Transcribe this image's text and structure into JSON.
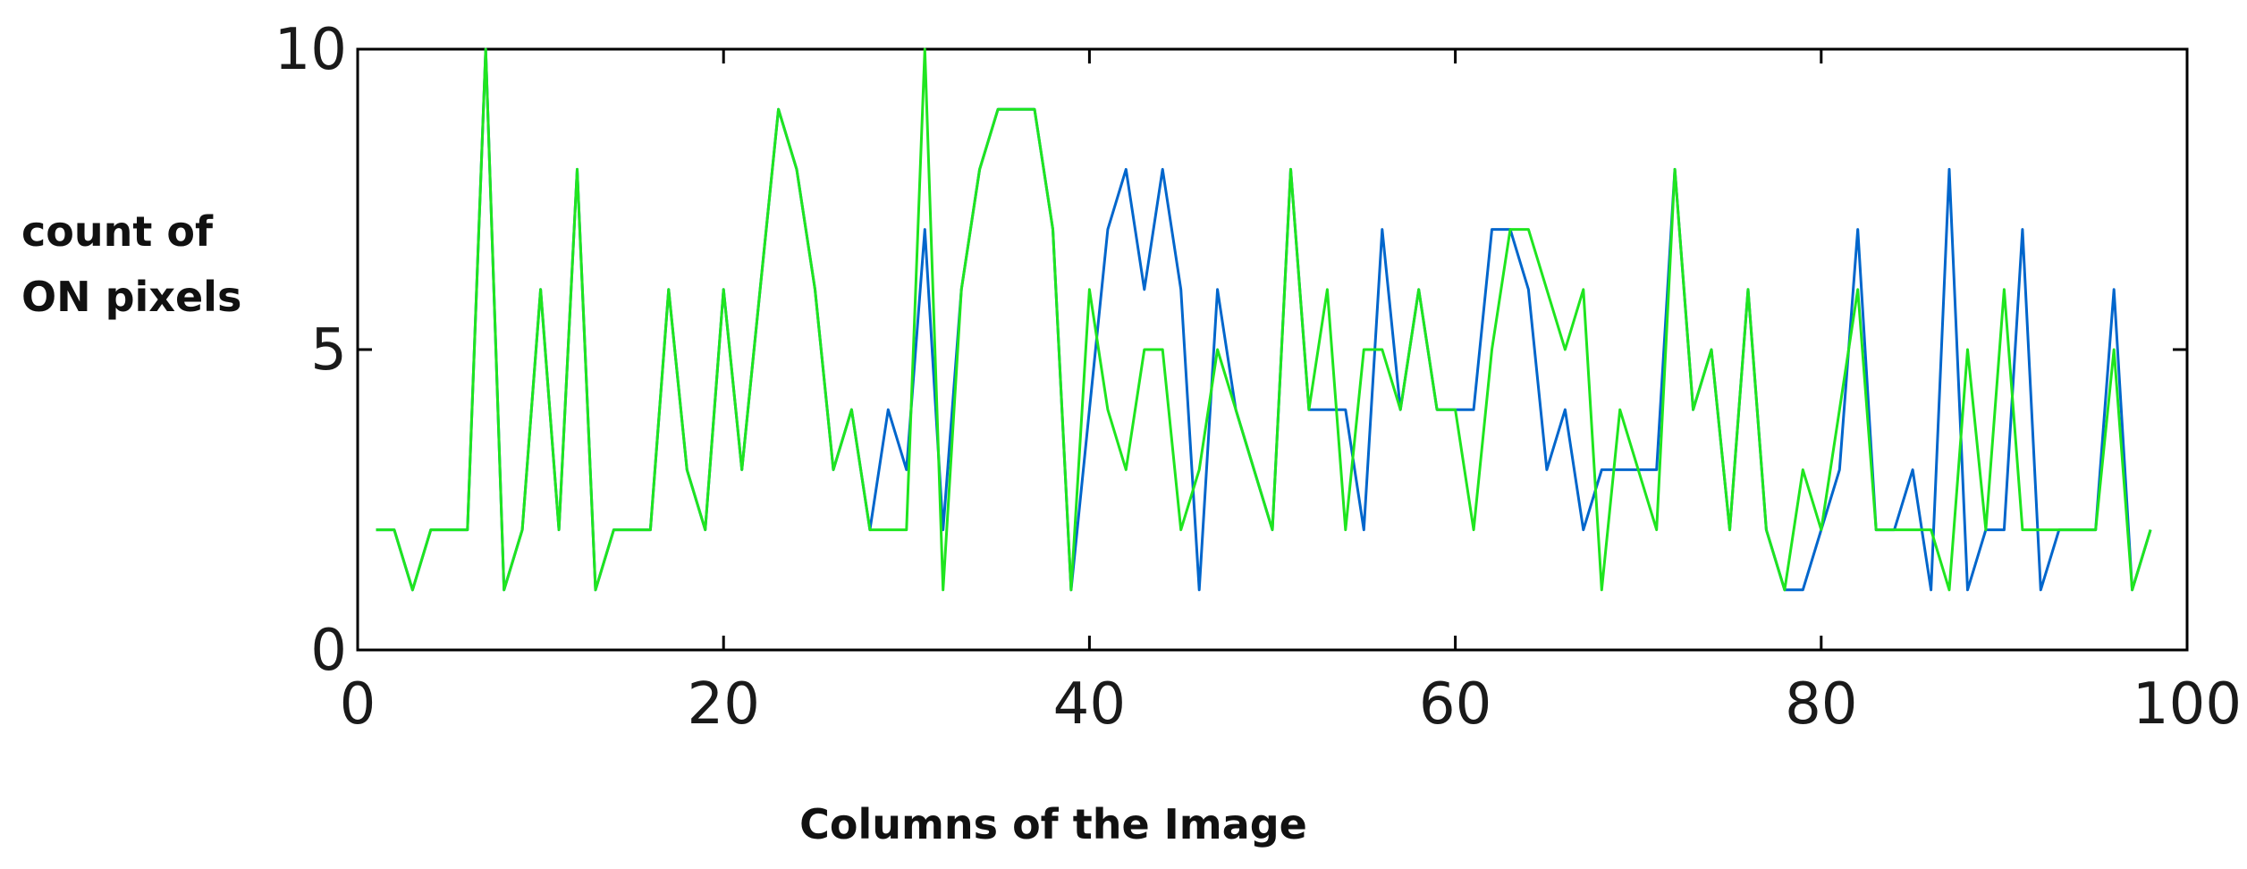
{
  "chart_data": {
    "type": "line",
    "title": "",
    "xlabel": "Columns of the Image",
    "ylabel_lines": [
      "count of",
      "ON pixels"
    ],
    "xlim": [
      0,
      100
    ],
    "ylim": [
      0,
      10
    ],
    "x_ticks": [
      0,
      20,
      40,
      60,
      80,
      100
    ],
    "y_ticks": [
      0,
      5,
      10
    ],
    "x_tick_labels": [
      "0",
      "20",
      "40",
      "60",
      "80",
      "100"
    ],
    "y_tick_labels": [
      "0",
      "5",
      "10"
    ],
    "grid": false,
    "series": [
      {
        "color": "#0066cc",
        "x": [
          1,
          2,
          3,
          4,
          5,
          6,
          7,
          8,
          9,
          10,
          11,
          12,
          13,
          14,
          15,
          16,
          17,
          18,
          19,
          20,
          21,
          22,
          23,
          24,
          25,
          26,
          27,
          28,
          29,
          30,
          31,
          32,
          33,
          34,
          35,
          36,
          37,
          38,
          39,
          40,
          41,
          42,
          43,
          44,
          45,
          46,
          47,
          48,
          49,
          50,
          51,
          52,
          53,
          54,
          55,
          56,
          57,
          58,
          59,
          60,
          61,
          62,
          63,
          64,
          65,
          66,
          67,
          68,
          69,
          70,
          71,
          72,
          73,
          74,
          75,
          76,
          77,
          78,
          79,
          80,
          81,
          82,
          83,
          84,
          85,
          86,
          87,
          88,
          89,
          90,
          91,
          92,
          93,
          94,
          95,
          96,
          97,
          98
        ],
        "y": [
          2,
          2,
          1,
          2,
          2,
          2,
          10,
          1,
          2,
          6,
          2,
          8,
          1,
          2,
          2,
          2,
          6,
          3,
          2,
          6,
          3,
          6,
          9,
          8,
          6,
          3,
          4,
          2,
          4,
          3,
          7,
          2,
          6,
          8,
          9,
          9,
          9,
          7,
          1,
          4,
          7,
          8,
          6,
          8,
          6,
          1,
          6,
          4,
          3,
          2,
          8,
          4,
          4,
          4,
          2,
          7,
          4,
          6,
          4,
          4,
          4,
          7,
          7,
          6,
          3,
          4,
          2,
          3,
          3,
          3,
          3,
          8,
          4,
          5,
          2,
          6,
          2,
          1,
          1,
          2,
          3,
          7,
          2,
          2,
          3,
          1,
          8,
          1,
          2,
          2,
          7,
          1,
          2,
          2,
          2,
          6,
          1,
          2
        ]
      },
      {
        "color": "#1fe51f",
        "x": [
          1,
          2,
          3,
          4,
          5,
          6,
          7,
          8,
          9,
          10,
          11,
          12,
          13,
          14,
          15,
          16,
          17,
          18,
          19,
          20,
          21,
          22,
          23,
          24,
          25,
          26,
          27,
          28,
          29,
          30,
          31,
          32,
          33,
          34,
          35,
          36,
          37,
          38,
          39,
          40,
          41,
          42,
          43,
          44,
          45,
          46,
          47,
          48,
          49,
          50,
          51,
          52,
          53,
          54,
          55,
          56,
          57,
          58,
          59,
          60,
          61,
          62,
          63,
          64,
          65,
          66,
          67,
          68,
          69,
          70,
          71,
          72,
          73,
          74,
          75,
          76,
          77,
          78,
          79,
          80,
          81,
          82,
          83,
          84,
          85,
          86,
          87,
          88,
          89,
          90,
          91,
          92,
          93,
          94,
          95,
          96,
          97,
          98
        ],
        "y": [
          2,
          2,
          1,
          2,
          2,
          2,
          10,
          1,
          2,
          6,
          2,
          8,
          1,
          2,
          2,
          2,
          6,
          3,
          2,
          6,
          3,
          6,
          9,
          8,
          6,
          3,
          4,
          2,
          2,
          2,
          10,
          1,
          6,
          8,
          9,
          9,
          9,
          7,
          1,
          6,
          4,
          3,
          5,
          5,
          2,
          3,
          5,
          4,
          3,
          2,
          8,
          4,
          6,
          2,
          5,
          5,
          4,
          6,
          4,
          4,
          2,
          5,
          7,
          7,
          6,
          5,
          6,
          1,
          4,
          3,
          2,
          8,
          4,
          5,
          2,
          6,
          2,
          1,
          3,
          2,
          4,
          6,
          2,
          2,
          2,
          2,
          1,
          5,
          2,
          6,
          2,
          2,
          2,
          2,
          2,
          5,
          1,
          2
        ]
      }
    ]
  }
}
